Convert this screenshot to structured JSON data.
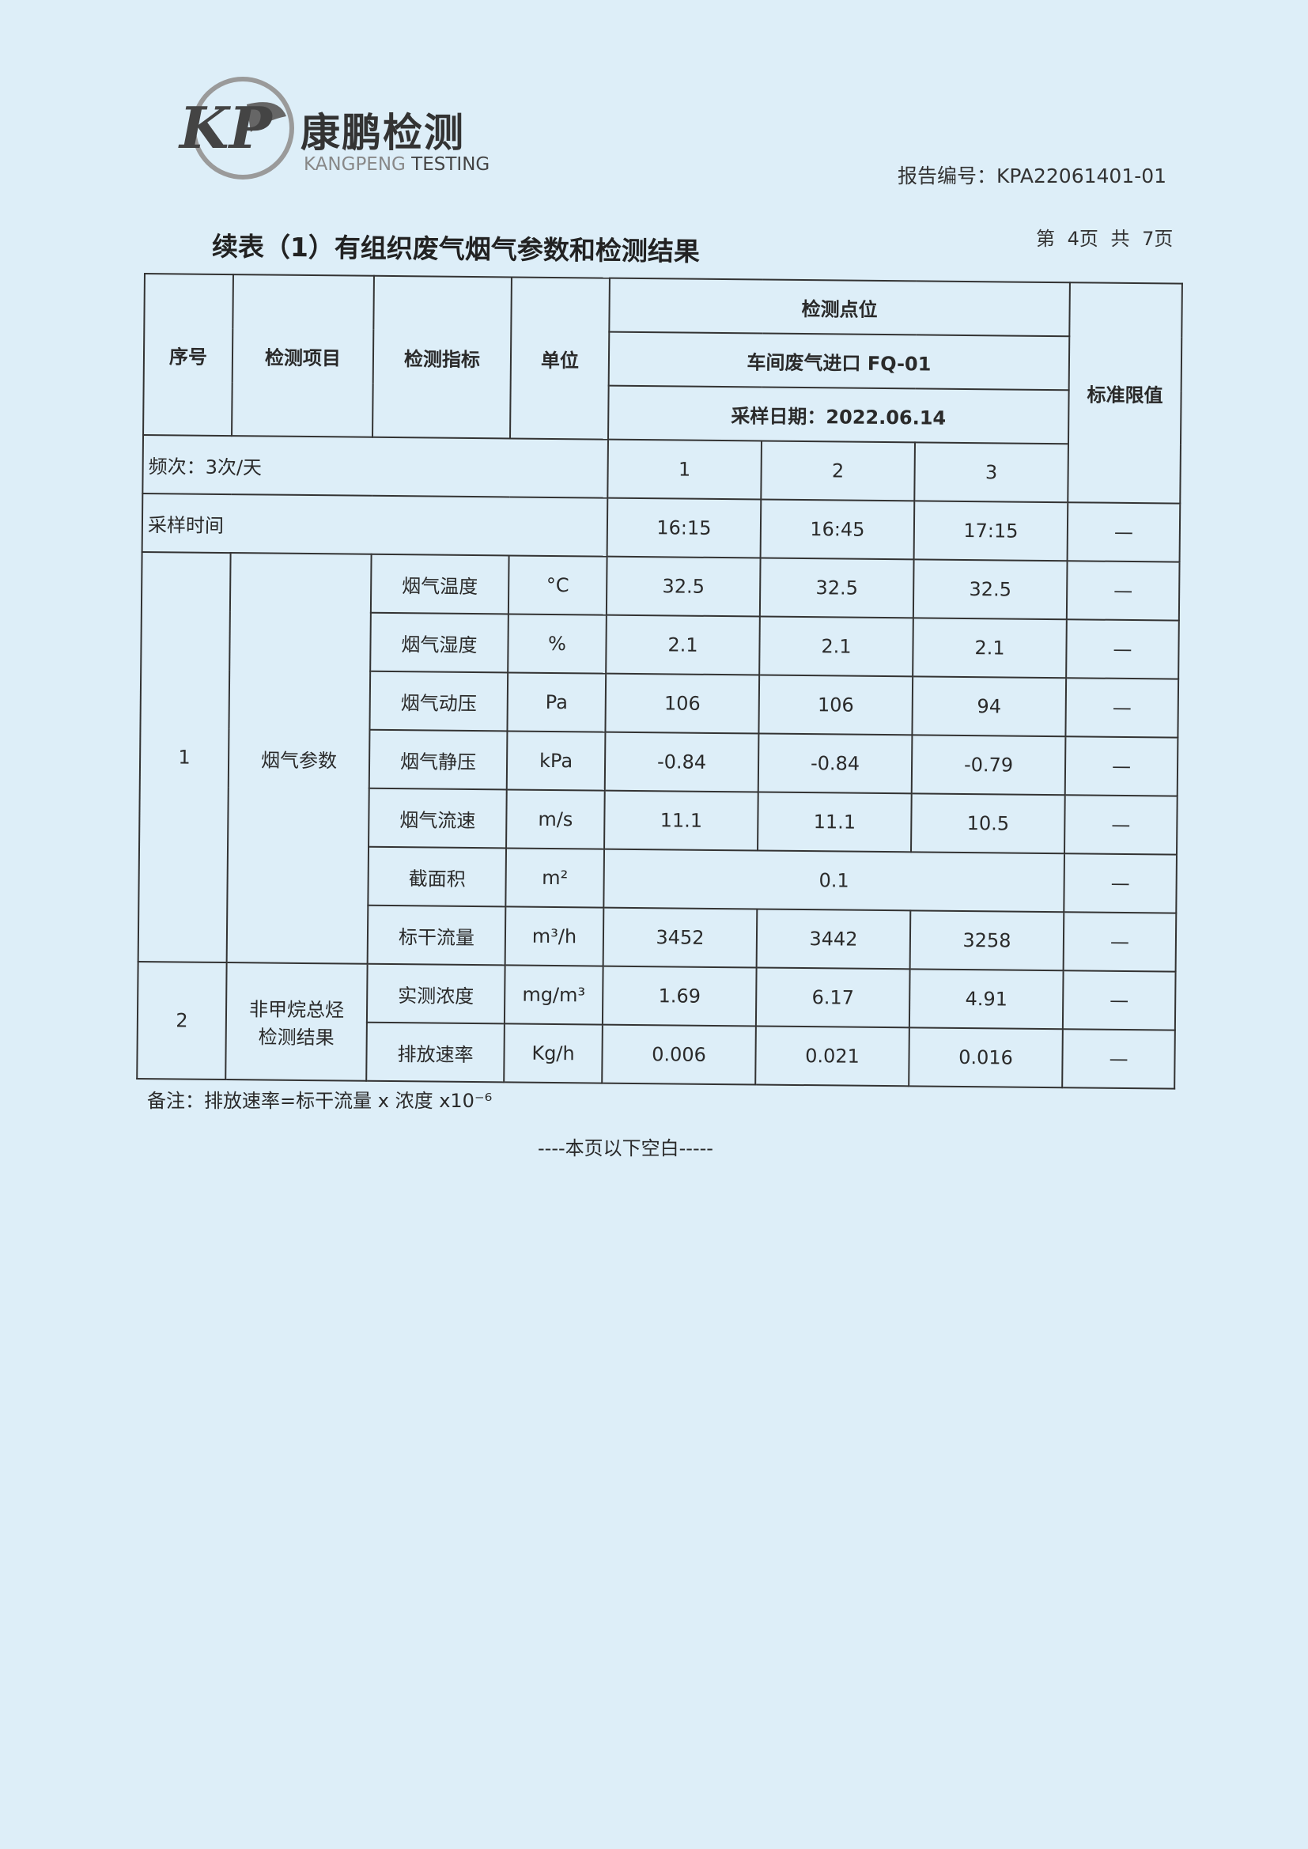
{
  "header": {
    "logo_text": "KP",
    "brand_cn": "康鹏检测",
    "brand_en_1": "KANGPENG",
    "brand_en_2": " TESTING",
    "report_no": "报告编号：KPA22061401-01",
    "page_no": "第 4页 共 7页",
    "title": "续表（1）有组织废气烟气参数和检测结果"
  },
  "table": {
    "h_seq": "序号",
    "h_item": "检测项目",
    "h_index": "检测指标",
    "h_unit": "单位",
    "h_point": "检测点位",
    "point": "车间废气进口 FQ-01",
    "date": "采样日期：2022.06.14",
    "h_std": "标准限值",
    "freq": "频次：3次/天",
    "freq_cols": [
      "1",
      "2",
      "3"
    ],
    "time_label": "采样时间",
    "times": [
      "16:15",
      "16:45",
      "17:15"
    ],
    "time_std": "—",
    "groups": [
      {
        "seq": "1",
        "item": "烟气参数"
      },
      {
        "seq": "2",
        "item": "非甲烷总烃检测结果"
      }
    ],
    "rows": [
      {
        "index": "烟气温度",
        "unit": "°C",
        "v": [
          "32.5",
          "32.5",
          "32.5"
        ],
        "std": "—"
      },
      {
        "index": "烟气湿度",
        "unit": "%",
        "v": [
          "2.1",
          "2.1",
          "2.1"
        ],
        "std": "—"
      },
      {
        "index": "烟气动压",
        "unit": "Pa",
        "v": [
          "106",
          "106",
          "94"
        ],
        "std": "—"
      },
      {
        "index": "烟气静压",
        "unit": "kPa",
        "v": [
          "-0.84",
          "-0.84",
          "-0.79"
        ],
        "std": "—"
      },
      {
        "index": "烟气流速",
        "unit": "m/s",
        "v": [
          "11.1",
          "11.1",
          "10.5"
        ],
        "std": "—"
      },
      {
        "index": "截面积",
        "unit": "m²",
        "v": [
          "0.1"
        ],
        "std": "—"
      },
      {
        "index": "标干流量",
        "unit": "m³/h",
        "v": [
          "3452",
          "3442",
          "3258"
        ],
        "std": "—"
      },
      {
        "index": "实测浓度",
        "unit": "mg/m³",
        "v": [
          "1.69",
          "6.17",
          "4.91"
        ],
        "std": "—"
      },
      {
        "index": "排放速率",
        "unit": "Kg/h",
        "v": [
          "0.006",
          "0.021",
          "0.016"
        ],
        "std": "—"
      }
    ]
  },
  "note": "备注：排放速率=标干流量 x 浓度 x10⁻⁶",
  "blank": "----本页以下空白-----"
}
